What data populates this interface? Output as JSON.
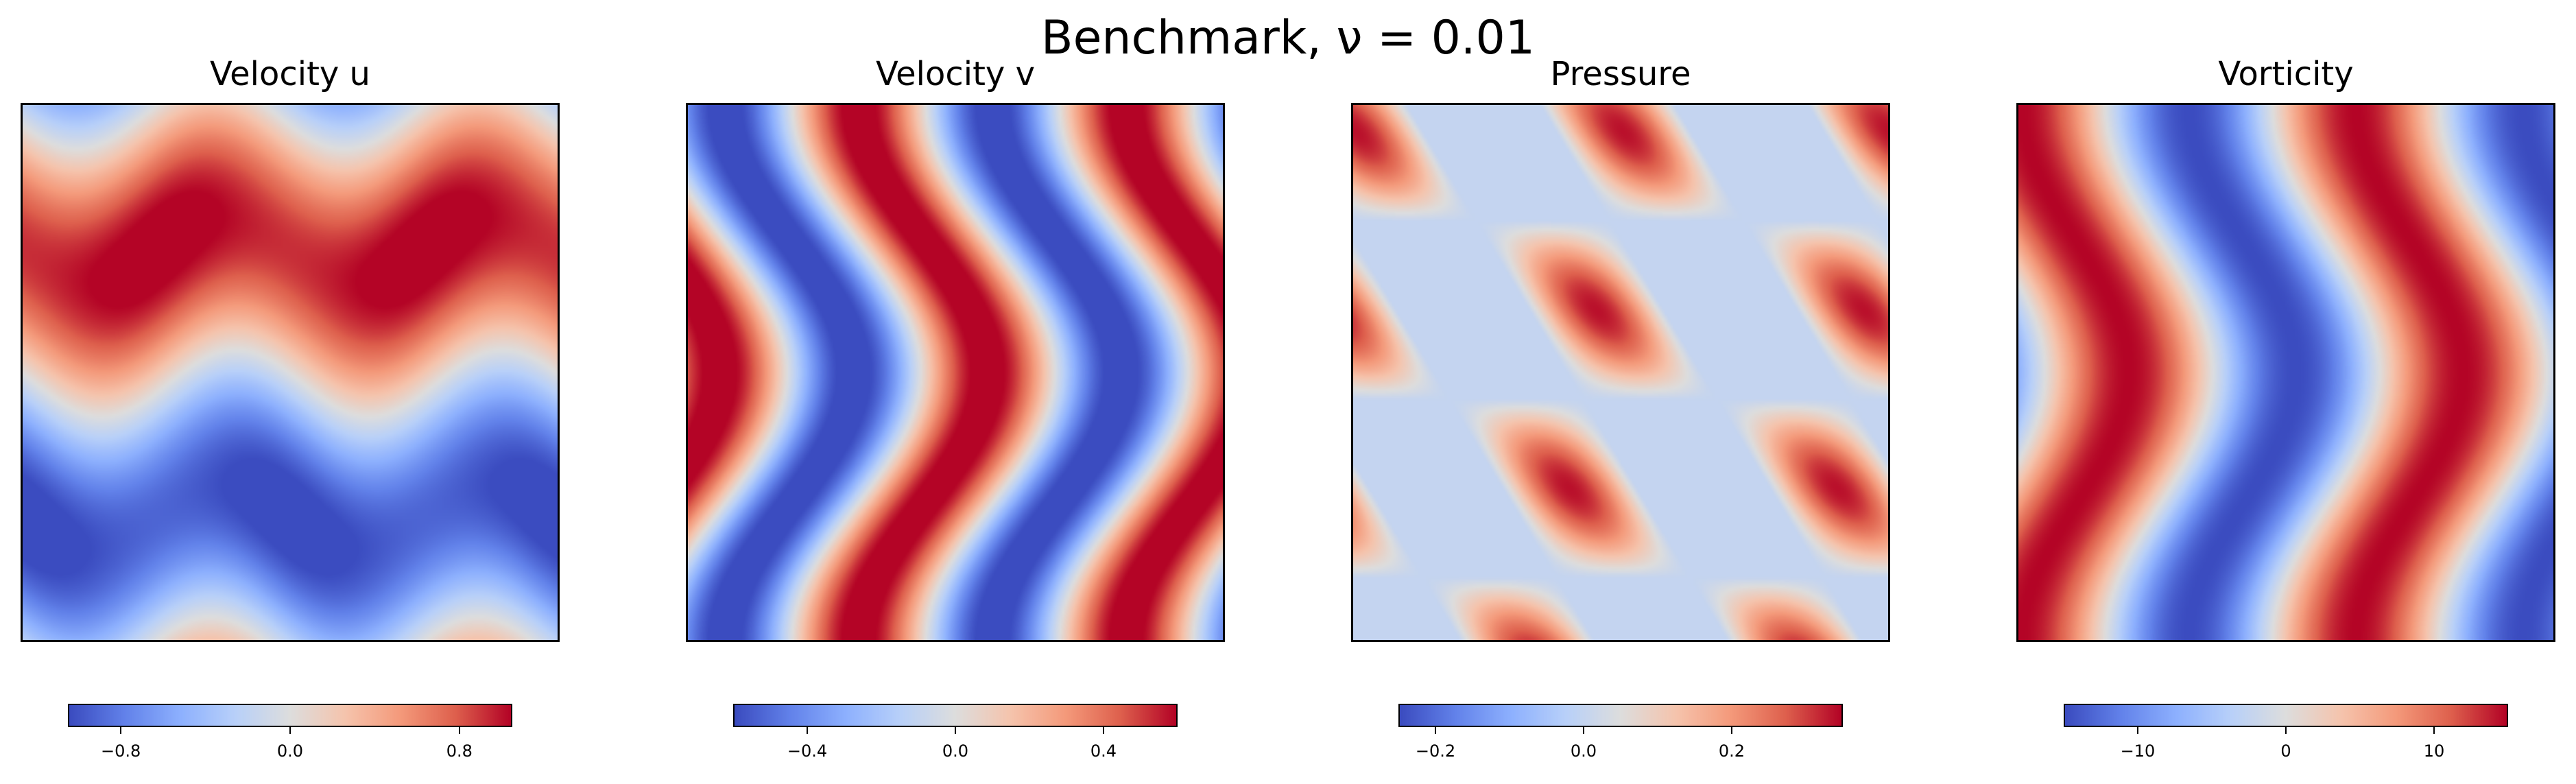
{
  "chart_data": {
    "type": "heatmap",
    "suptitle": "Benchmark, ν = 0.01",
    "colormap": "coolwarm",
    "panels": [
      {
        "title": "Velocity u",
        "field": "u",
        "vmin": -1.05,
        "vmax": 1.05,
        "ticks": [
          -0.8,
          0.0,
          0.8
        ],
        "tick_labels": [
          "−0.8",
          "0.0",
          "0.8"
        ]
      },
      {
        "title": "Velocity v",
        "field": "v",
        "vmin": -0.6,
        "vmax": 0.6,
        "ticks": [
          -0.4,
          0.0,
          0.4
        ],
        "tick_labels": [
          "−0.4",
          "0.0",
          "0.4"
        ]
      },
      {
        "title": "Pressure",
        "field": "p",
        "vmin": -0.25,
        "vmax": 0.35,
        "ticks": [
          -0.2,
          0.0,
          0.2
        ],
        "tick_labels": [
          "−0.2",
          "0.0",
          "0.2"
        ]
      },
      {
        "title": "Vorticity",
        "field": "w",
        "vmin": -15,
        "vmax": 15,
        "ticks": [
          -10,
          0,
          10
        ],
        "tick_labels": [
          "−10",
          "0",
          "10"
        ]
      }
    ]
  }
}
